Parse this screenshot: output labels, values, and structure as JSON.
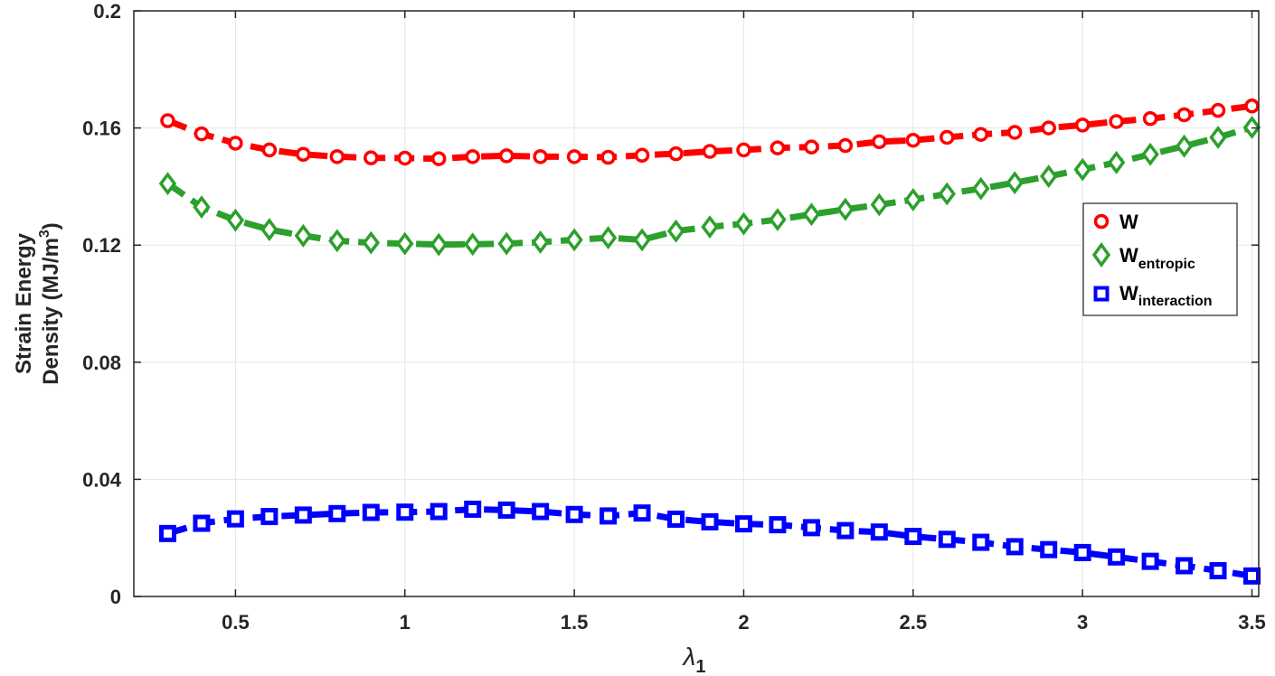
{
  "chart_data": {
    "type": "line",
    "xlabel_symbol": "λ",
    "xlabel_sub": "1",
    "ylabel_line1": "Strain Energy",
    "ylabel_line2": "Density (MJ/m",
    "ylabel_sup": "3",
    "ylabel_end": ")",
    "xlim": [
      0.2,
      3.52
    ],
    "ylim": [
      0,
      0.2
    ],
    "xticks": [
      0.5,
      1,
      1.5,
      2,
      2.5,
      3,
      3.5
    ],
    "xtick_labels": [
      "0.5",
      "1",
      "1.5",
      "2",
      "2.5",
      "3",
      "3.5"
    ],
    "yticks": [
      0,
      0.04,
      0.08,
      0.12,
      0.16,
      0.2
    ],
    "ytick_labels": [
      "0",
      "0.04",
      "0.08",
      "0.12",
      "0.16",
      "0.2"
    ],
    "grid": true,
    "legend_position": "right",
    "x": [
      0.3,
      0.4,
      0.5,
      0.6,
      0.7,
      0.8,
      0.9,
      1.0,
      1.1,
      1.2,
      1.3,
      1.4,
      1.5,
      1.6,
      1.7,
      1.8,
      1.9,
      2.0,
      2.1,
      2.2,
      2.3,
      2.4,
      2.5,
      2.6,
      2.7,
      2.8,
      2.9,
      3.0,
      3.1,
      3.2,
      3.3,
      3.4,
      3.5
    ],
    "series": [
      {
        "name": "W",
        "name_sub": "",
        "color": "#ff0000",
        "marker": "circle",
        "values": [
          0.1625,
          0.158,
          0.1548,
          0.1525,
          0.151,
          0.1502,
          0.1498,
          0.1497,
          0.1495,
          0.1502,
          0.1505,
          0.1502,
          0.1502,
          0.15,
          0.1507,
          0.1512,
          0.152,
          0.1525,
          0.1532,
          0.1535,
          0.154,
          0.1553,
          0.1558,
          0.1568,
          0.1578,
          0.1585,
          0.16,
          0.161,
          0.1622,
          0.1632,
          0.1645,
          0.166,
          0.1675
        ]
      },
      {
        "name": "W",
        "name_sub": "entropic",
        "color": "#2ca02c",
        "marker": "diamond",
        "values": [
          0.141,
          0.133,
          0.1285,
          0.1253,
          0.1232,
          0.1215,
          0.1208,
          0.1205,
          0.1202,
          0.1203,
          0.1205,
          0.121,
          0.1218,
          0.1225,
          0.1218,
          0.1248,
          0.1262,
          0.1273,
          0.1287,
          0.1305,
          0.1322,
          0.1338,
          0.1355,
          0.1375,
          0.1393,
          0.1413,
          0.1435,
          0.1458,
          0.1482,
          0.151,
          0.1538,
          0.1568,
          0.1602
        ]
      },
      {
        "name": "W",
        "name_sub": "interaction",
        "color": "#0000ff",
        "marker": "square",
        "values": [
          0.0215,
          0.025,
          0.0265,
          0.0273,
          0.0278,
          0.0283,
          0.0287,
          0.0288,
          0.029,
          0.0298,
          0.0295,
          0.029,
          0.028,
          0.0275,
          0.0285,
          0.0264,
          0.0255,
          0.0248,
          0.0245,
          0.0235,
          0.0225,
          0.022,
          0.0205,
          0.0195,
          0.0185,
          0.017,
          0.016,
          0.015,
          0.0135,
          0.012,
          0.0105,
          0.0088,
          0.007
        ]
      }
    ]
  }
}
